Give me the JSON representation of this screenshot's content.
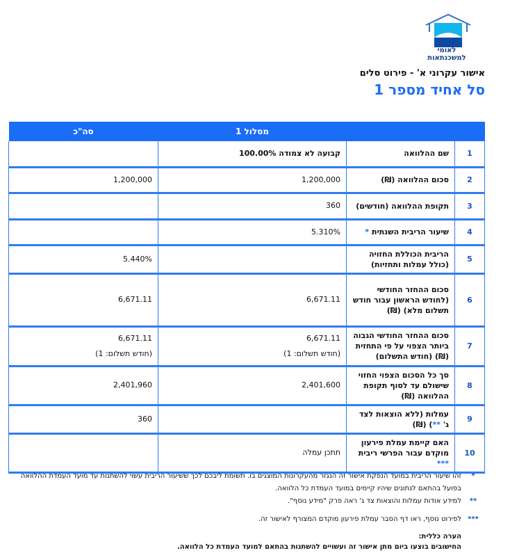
{
  "header": {
    "logo_text": "לאומי למשכנתאות",
    "subtitle": "אישור עקרוני א' -  פירוט סלים",
    "title": "סל אחיד מספר 1"
  },
  "table": {
    "col_route": "מסלול 1",
    "col_total": "סה\"כ",
    "rows": [
      {
        "num": "1",
        "label": "שם ההלוואה",
        "route": "קבועה לא צמודה   100.00%",
        "route_bold": true,
        "total": ""
      },
      {
        "num": "2",
        "label": "סכום ההלוואה (₪)",
        "route": "1,200,000",
        "total": "1,200,000"
      },
      {
        "num": "3",
        "label": "תקופת ההלוואה (חודשים)",
        "route": "360",
        "total": ""
      },
      {
        "num": "4",
        "label": "שיעור הריבית השנתית",
        "label_mark": "*",
        "route": "5.310%",
        "total": ""
      },
      {
        "num": "5",
        "label": "הריבית הכוללת החזויה (כולל עמלות ותחזיות)",
        "route": "",
        "total": "5.440%"
      },
      {
        "num": "6",
        "label": "סכום ההחזר החודשי (לחודש הראשון עבור חודש תשלום מלא) (₪)",
        "route": "6,671.11",
        "total": "6,671.11"
      },
      {
        "num": "7",
        "label": "סכום ההחזר החודשי הגבוה ביותר הצפוי על פי התחזית (₪)  (חודש התשלום)",
        "route": "6,671.11",
        "route_sub": "(חודש תשלום: 1)",
        "total": "6,671.11",
        "total_sub": "(חודש תשלום: 1)"
      },
      {
        "num": "8",
        "label": "סך כל הסכום הצפוי החזוי שישולם עד לסוף תקופת ההלוואה (₪)",
        "route": "2,401,600",
        "total": "2,401,960"
      },
      {
        "num": "9",
        "label": "עמלות (ללא הוצאות לצד ג'",
        "label_mark": "**",
        "label_tail": ") (₪)",
        "route": "",
        "total": "360"
      },
      {
        "num": "10",
        "label": "האם קיימת עמלת פירעון מוקדם עבור הפרשי ריבית",
        "label_mark": "***",
        "route": "תתכן עמלה",
        "total": ""
      }
    ]
  },
  "notes": [
    {
      "mark": "*",
      "text": "זהו שיעור הריבית במועד הנפקת אישור זה הנגזר מהעקרונות המוצגים בו. תשומת ליבכם לכך ששיעור הריבית עשוי להשתנות עד מועד העמדת ההלוואה בפועל בהתאם לנתונים שיהיו קיימים במועד העמדת כל הלוואה."
    },
    {
      "mark": "**",
      "text": "למידע אודות עמלות והוצאות צד ג' ראה פרק \"מידע נוסף\"."
    },
    {
      "mark": "***",
      "text": "לפירוט נוסף, ראו דף הסבר עמלת פירעון מוקדם המצורף לאישור זה."
    }
  ],
  "general_note": {
    "title": "הערה כללית:",
    "text": "החישובים בוצעו ביום מתן אישור זה ועשויים להשתנות בהתאם למועד העמדת כל הלוואה."
  },
  "colors": {
    "accent": "#1a6ef5",
    "logo_sky": "#14b4ec",
    "logo_sea": "#0b4aa0"
  }
}
